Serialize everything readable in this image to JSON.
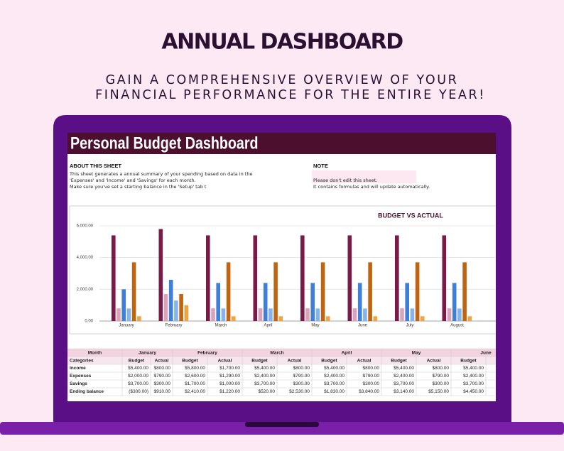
{
  "header": {
    "title": "ANNUAL DASHBOARD",
    "subtitle": [
      "GAIN A COMPREHENSIVE OVERVIEW OF YOUR",
      "FINANCIAL PERFORMANCE FOR THE ENTIRE YEAR!"
    ]
  },
  "sheet": {
    "title": "Personal Budget Dashboard",
    "about": {
      "heading": "ABOUT THIS SHEET",
      "lines": [
        "This sheet generates a annual summary of your spending based on data in the",
        "'Expenses' and 'Income' and 'Savings' for each month.",
        "Make sure you've set a starting balance in the 'Setup' tab t"
      ]
    },
    "note": {
      "heading": "NOTE",
      "lines": [
        "Please don't edit this sheet.",
        "It contains formulas and will update automatically."
      ]
    }
  },
  "chart_data": {
    "type": "bar",
    "title": "BUDGET VS ACTUAL",
    "categories": [
      "January",
      "February",
      "March",
      "April",
      "May",
      "June",
      "July",
      "August"
    ],
    "series": [
      {
        "color": "#7a1a48",
        "values": [
          5400,
          5800,
          5400,
          5400,
          5400,
          5400,
          5400,
          5400
        ]
      },
      {
        "color": "#dba3bb",
        "values": [
          800,
          1700,
          800,
          800,
          800,
          800,
          800,
          800
        ]
      },
      {
        "color": "#3f7fd8",
        "values": [
          2000,
          2600,
          2400,
          2400,
          2400,
          2400,
          2400,
          2400
        ]
      },
      {
        "color": "#86b3ec",
        "values": [
          790,
          1290,
          790,
          790,
          790,
          790,
          790,
          790
        ]
      },
      {
        "color": "#bf6410",
        "values": [
          3700,
          1700,
          3700,
          3700,
          3700,
          3700,
          3700,
          3700
        ]
      },
      {
        "color": "#eea443",
        "values": [
          300,
          1000,
          300,
          300,
          300,
          300,
          300,
          300
        ]
      }
    ],
    "ylim": [
      0,
      6000
    ],
    "yticks": [
      {
        "value": 0,
        "label": "0.00"
      },
      {
        "value": 2000,
        "label": "2,000.00"
      },
      {
        "value": 4000,
        "label": "4,000.00"
      },
      {
        "value": 6000,
        "label": "6,000.00"
      }
    ],
    "grid": true
  },
  "table": {
    "header": [
      "Month",
      "January",
      "February",
      "March",
      "April",
      "May",
      "June"
    ],
    "subheader": [
      "Categories",
      "Budget",
      "Actual",
      "Budget",
      "Actual",
      "Budget",
      "Actual",
      "Budget",
      "Actual",
      "Budget",
      "Actual",
      "Budget"
    ],
    "rows": [
      [
        "Income",
        "$5,400.00",
        "$800.00",
        "$5,800.00",
        "$1,700.00",
        "$5,400.00",
        "$800.00",
        "$5,400.00",
        "$800.00",
        "$5,400.00",
        "$800.00",
        "$5,400.00"
      ],
      [
        "Expenses",
        "$2,000.00",
        "$790.00",
        "$2,600.00",
        "$1,290.00",
        "$2,400.00",
        "$790.00",
        "$2,400.00",
        "$790.00",
        "$2,400.00",
        "$790.00",
        "$2,400.00"
      ],
      [
        "Savings",
        "$3,700.00",
        "$300.00",
        "$1,700.00",
        "$1,000.00",
        "$3,700.00",
        "$300.00",
        "$3,700.00",
        "$300.00",
        "$3,700.00",
        "$300.00",
        "$3,700.00"
      ],
      [
        "Ending balance",
        "($300.00)",
        "$910.00",
        "$2,410.00",
        "$1,220.00",
        "$520.00",
        "$2,530.00",
        "$1,830.00",
        "$3,840.00",
        "$3,140.00",
        "$5,150.00",
        "$4,450.00"
      ]
    ]
  }
}
